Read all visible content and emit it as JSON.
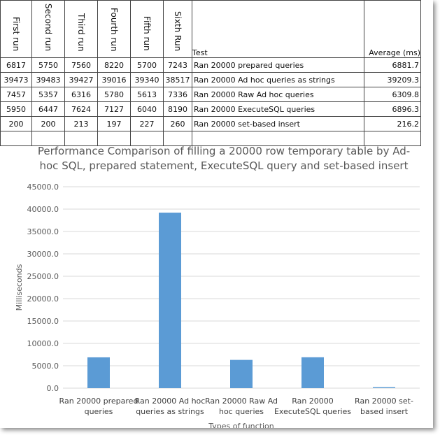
{
  "table": {
    "headers": [
      "First run",
      "Second run",
      "Third run",
      "Fourth run",
      "Fifth run",
      "Sixth Run"
    ],
    "test_header": "Test",
    "avg_header": "Average (ms)",
    "rows": [
      {
        "runs": [
          "6817",
          "5750",
          "7560",
          "8220",
          "5700",
          "7243"
        ],
        "test": "Ran 20000 prepared queries",
        "avg": "6881.7"
      },
      {
        "runs": [
          "39473",
          "39483",
          "39427",
          "39016",
          "39340",
          "38517"
        ],
        "test": "Ran 20000 Ad hoc queries as strings",
        "avg": "39209.3"
      },
      {
        "runs": [
          "7457",
          "5357",
          "6316",
          "5780",
          "5613",
          "7336"
        ],
        "test": "Ran 20000 Raw Ad hoc queries",
        "avg": "6309.8"
      },
      {
        "runs": [
          "5950",
          "6447",
          "7624",
          "7127",
          "6040",
          "8190"
        ],
        "test": "Ran 20000 ExecuteSQL queries",
        "avg": "6896.3"
      },
      {
        "runs": [
          "200",
          "200",
          "213",
          "197",
          "227",
          "260"
        ],
        "test": "Ran 20000 set-based insert",
        "avg": "216.2"
      }
    ]
  },
  "chart_data": {
    "type": "bar",
    "title": "Performance Comparison of filling a 20000 row temporary table by Ad-hoc SQL, prepared statement, ExecuteSQL query and set-based insert",
    "title_lines": [
      "Performance Comparison of filling a 20000 row temporary table by Ad-",
      "hoc SQL, prepared statement, ExecuteSQL query and set-based insert"
    ],
    "categories": [
      "Ran 20000 prepared queries",
      "Ran 20000 Ad hoc queries as strings",
      "Ran 20000 Raw Ad hoc queries",
      "Ran 20000 ExecuteSQL queries",
      "Ran 20000 set-based insert"
    ],
    "category_lines": [
      [
        "Ran 20000 prepared",
        "queries"
      ],
      [
        "Ran 20000 Ad hoc",
        "queries as strings"
      ],
      [
        "Ran 20000 Raw Ad",
        "hoc queries"
      ],
      [
        "Ran 20000",
        "ExecuteSQL queries"
      ],
      [
        "Ran 20000 set-",
        "based insert"
      ]
    ],
    "values": [
      6881.7,
      39209.3,
      6309.8,
      6896.3,
      216.2
    ],
    "ylabel": "Milliseconds",
    "xlabel": "Types of function",
    "ylim": [
      0,
      45000
    ],
    "yticks": [
      "0.0",
      "5000.0",
      "10000.0",
      "15000.0",
      "20000.0",
      "25000.0",
      "30000.0",
      "35000.0",
      "40000.0",
      "45000.0"
    ],
    "grid": true,
    "bar_color": "#5B9BD5",
    "grid_color": "#D9D9D9"
  }
}
